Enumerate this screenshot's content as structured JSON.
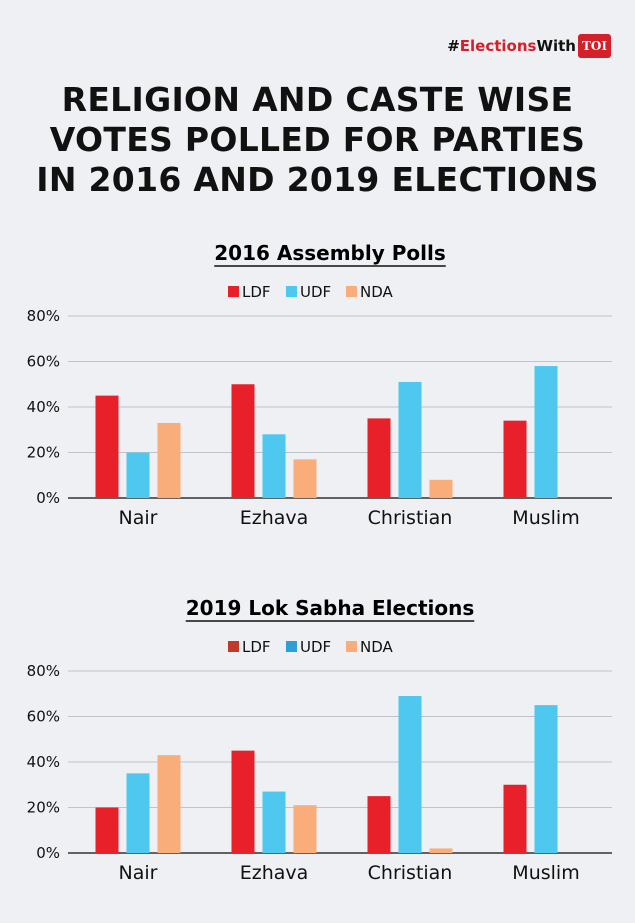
{
  "header": {
    "hashtag_prefix": "#",
    "hashtag_red": "Elections",
    "hashtag_suffix": "With",
    "badge": "TOI",
    "title_lines": [
      "RELIGION AND CASTE WISE",
      "VOTES POLLED FOR PARTIES",
      "IN 2016 AND 2019 ELECTIONS"
    ]
  },
  "colors": {
    "accent": "#d3202a",
    "grid": "#bfc4cc",
    "axis": "#333333",
    "background": "#eef0f4"
  },
  "chart_data": [
    {
      "type": "bar",
      "title": "2016 Assembly Polls",
      "categories": [
        "Nair",
        "Ezhava",
        "Christian",
        "Muslim"
      ],
      "series": [
        {
          "name": "LDF",
          "color": "#e8202a",
          "values": [
            45,
            50,
            35,
            34
          ]
        },
        {
          "name": "UDF",
          "color": "#4fc8f0",
          "values": [
            20,
            28,
            51,
            58
          ]
        },
        {
          "name": "NDA",
          "color": "#f9ad7a",
          "values": [
            33,
            17,
            8,
            null
          ]
        }
      ],
      "yticks": [
        "0%",
        "20%",
        "40%",
        "60%",
        "80%"
      ],
      "ylim": [
        0,
        80
      ],
      "xlabel": "",
      "ylabel": "",
      "legend": "top-center",
      "grid": true
    },
    {
      "type": "bar",
      "title": "2019 Lok Sabha Elections",
      "categories": [
        "Nair",
        "Ezhava",
        "Christian",
        "Muslim"
      ],
      "series": [
        {
          "name": "LDF",
          "color": "#e8202a",
          "legend_color": "#c0392b",
          "values": [
            20,
            45,
            25,
            30
          ]
        },
        {
          "name": "UDF",
          "color": "#4fc8f0",
          "legend_color": "#2e9ed6",
          "values": [
            35,
            27,
            69,
            65
          ]
        },
        {
          "name": "NDA",
          "color": "#f9ad7a",
          "legend_color": "#f9ad7a",
          "values": [
            43,
            21,
            2,
            null
          ]
        }
      ],
      "yticks": [
        "0%",
        "20%",
        "40%",
        "60%",
        "80%"
      ],
      "ylim": [
        0,
        80
      ],
      "xlabel": "",
      "ylabel": "",
      "legend": "top-center",
      "grid": true
    }
  ]
}
